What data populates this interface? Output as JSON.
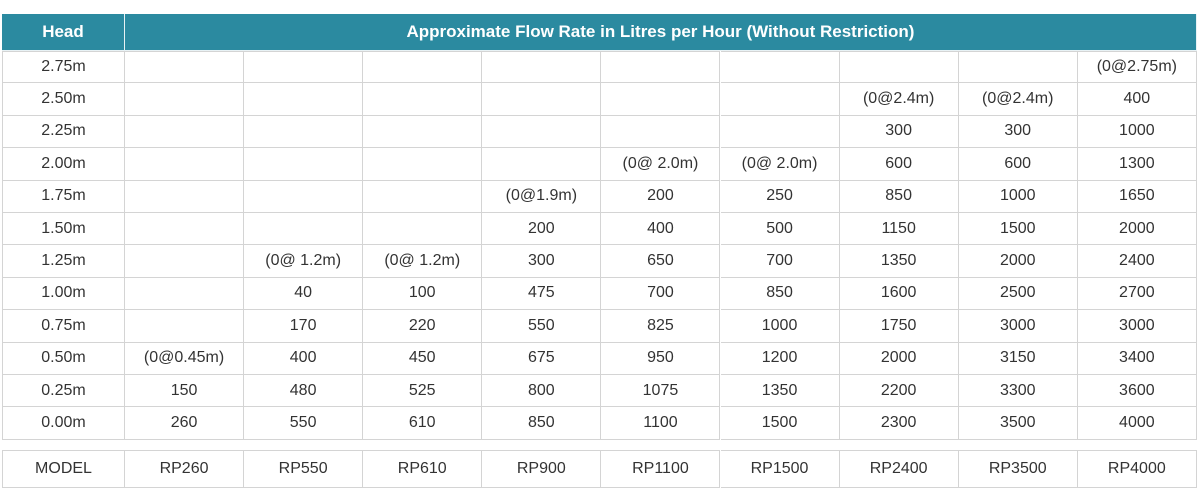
{
  "table": {
    "header": [
      "Head",
      "Approximate Flow Rate in Litres per Hour (Without Restriction)"
    ],
    "rows": [
      [
        "2.75m",
        null,
        null,
        null,
        null,
        null,
        null,
        null,
        null,
        "(0@2.75m)"
      ],
      [
        "2.50m",
        null,
        null,
        null,
        null,
        null,
        null,
        "(0@2.4m)",
        "(0@2.4m)",
        "400"
      ],
      [
        "2.25m",
        null,
        null,
        null,
        null,
        null,
        null,
        "300",
        "300",
        "1000"
      ],
      [
        "2.00m",
        null,
        null,
        null,
        null,
        "(0@ 2.0m)",
        "(0@ 2.0m)",
        "600",
        "600",
        "1300"
      ],
      [
        "1.75m",
        null,
        null,
        null,
        "(0@1.9m)",
        "200",
        "250",
        "850",
        "1000",
        "1650"
      ],
      [
        "1.50m",
        null,
        null,
        null,
        "200",
        "400",
        "500",
        "1150",
        "1500",
        "2000"
      ],
      [
        "1.25m",
        null,
        "(0@ 1.2m)",
        "(0@ 1.2m)",
        "300",
        "650",
        "700",
        "1350",
        "2000",
        "2400"
      ],
      [
        "1.00m",
        null,
        "40",
        "100",
        "475",
        "700",
        "850",
        "1600",
        "2500",
        "2700"
      ],
      [
        "0.75m",
        null,
        "170",
        "220",
        "550",
        "825",
        "1000",
        "1750",
        "3000",
        "3000"
      ],
      [
        "0.50m",
        "(0@0.45m)",
        "400",
        "450",
        "675",
        "950",
        "1200",
        "2000",
        "3150",
        "3400"
      ],
      [
        "0.25m",
        "150",
        "480",
        "525",
        "800",
        "1075",
        "1350",
        "2200",
        "3300",
        "3600"
      ],
      [
        "0.00m",
        "260",
        "550",
        "610",
        "850",
        "1100",
        "1500",
        "2300",
        "3500",
        "4000"
      ]
    ],
    "footer": [
      "MODEL",
      "RP260",
      "RP550",
      "RP610",
      "RP900",
      "RP1100",
      "RP1500",
      "RP2400",
      "RP3500",
      "RP4000"
    ]
  }
}
